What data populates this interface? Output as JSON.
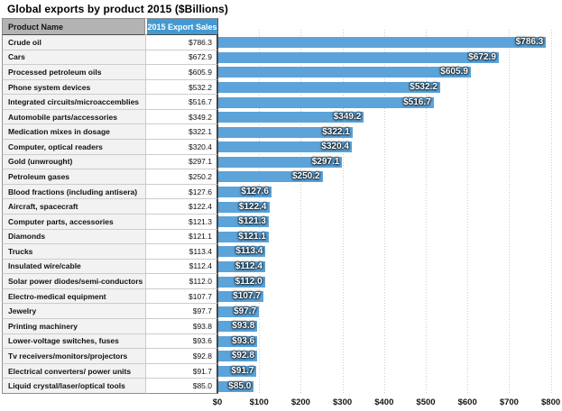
{
  "title": "Global exports by product 2015 ($Billions)",
  "table": {
    "header": {
      "product": "Product Name",
      "sales": "2015 Export Sales"
    }
  },
  "chart_data": {
    "type": "bar",
    "orientation": "horizontal",
    "title": "Global exports by product 2015 ($Billions)",
    "categories": [
      "Crude oil",
      "Cars",
      "Processed petroleum oils",
      "Phone system devices",
      "Integrated circuits/microaccemblies",
      "Automobile parts/accessories",
      "Medication mixes in dosage",
      "Computer, optical readers",
      "Gold (unwrought)",
      "Petroleum gases",
      "Blood fractions (including antisera)",
      "Aircraft, spacecraft",
      "Computer parts, accessories",
      "Diamonds",
      "Trucks",
      "Insulated wire/cable",
      "Solar power diodes/semi-conductors",
      "Electro-medical equipment",
      "Jewelry",
      "Printing machinery",
      "Lower-voltage switches, fuses",
      "Tv receivers/monitors/projectors",
      "Electrical converters/ power units",
      "Liquid crystal/laser/optical tools"
    ],
    "values": [
      786.3,
      672.9,
      605.9,
      532.2,
      516.7,
      349.2,
      322.1,
      320.4,
      297.1,
      250.2,
      127.6,
      122.4,
      121.3,
      121.1,
      113.4,
      112.4,
      112.0,
      107.7,
      97.7,
      93.8,
      93.6,
      92.8,
      91.7,
      85.0
    ],
    "value_labels": [
      "$786.3",
      "$672.9",
      "$605.9",
      "$532.2",
      "$516.7",
      "$349.2",
      "$322.1",
      "$320.4",
      "$297.1",
      "$250.2",
      "$127.6",
      "$122.4",
      "$121.3",
      "$121.1",
      "$113.4",
      "$112.4",
      "$112.0",
      "$107.7",
      "$97.7",
      "$93.8",
      "$93.6",
      "$92.8",
      "$91.7",
      "$85.0"
    ],
    "xticks": [
      "$0",
      "$100",
      "$200",
      "$300",
      "$400",
      "$500",
      "$600",
      "$700",
      "$800"
    ],
    "xlim": [
      0,
      800
    ],
    "xlabel": "",
    "ylabel": "",
    "grid": "vertical-dotted",
    "legend": "none",
    "bar_color": "#5ba3d9"
  },
  "colors": {
    "bar": "#5ba3d9",
    "header_blue": "#4499d2",
    "header_gray": "#b3b3b3",
    "product_cell_bg": "#f2f2f2",
    "gridline": "#cccccc"
  }
}
